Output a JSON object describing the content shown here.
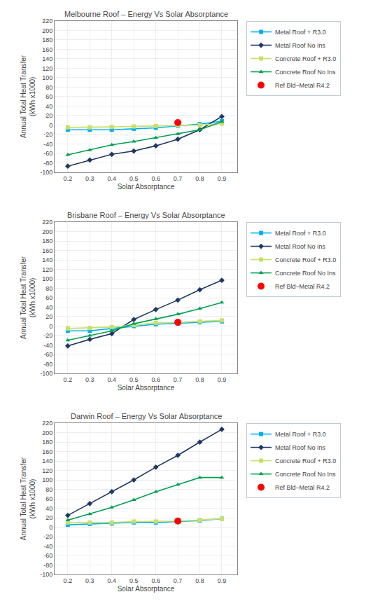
{
  "chart_data": [
    {
      "type": "line",
      "title": "Melbourne Roof – Energy Vs Solar Absorptance",
      "x": [
        0.2,
        0.3,
        0.4,
        0.5,
        0.6,
        0.7,
        0.8,
        0.9
      ],
      "series": [
        {
          "name": "Metal Roof + R3.0",
          "color": "#00b0f0",
          "marker": "square",
          "values": [
            -10,
            -10,
            -10,
            -8,
            -6,
            -2,
            2,
            8
          ]
        },
        {
          "name": "Metal Roof No Ins",
          "color": "#1f3864",
          "marker": "diamond",
          "values": [
            -87,
            -74,
            -62,
            -55,
            -44,
            -30,
            -10,
            18
          ]
        },
        {
          "name": "Concrete Roof + R3.0",
          "color": "#c8e06a",
          "marker": "square",
          "values": [
            -5,
            -5,
            -4,
            -3,
            -2,
            -1,
            0,
            3
          ]
        },
        {
          "name": "Concrete Roof No Ins",
          "color": "#00a050",
          "marker": "triangle-up",
          "values": [
            -63,
            -53,
            -42,
            -35,
            -27,
            -19,
            -10,
            7
          ]
        },
        {
          "name": "Ref Bld–Metal R4.2",
          "type": "scatter",
          "color": "#ff0000",
          "marker": "circle",
          "x": [
            0.7
          ],
          "values": [
            5
          ]
        }
      ],
      "xlabel": "Solar Absorptance",
      "ylabel": "Annual Total Heat Transfer\n(kWh x1000)",
      "xlim": [
        0.14,
        0.97
      ],
      "xticks": [
        0.2,
        0.3,
        0.4,
        0.5,
        0.6,
        0.7,
        0.8,
        0.9
      ],
      "ylim": [
        -100,
        220
      ],
      "yticks": [
        -100,
        -80,
        -60,
        -40,
        -20,
        0,
        20,
        40,
        60,
        80,
        100,
        120,
        140,
        160,
        180,
        200,
        220
      ],
      "grid": true,
      "legend": "right"
    },
    {
      "type": "line",
      "title": "Brisbane Roof – Energy Vs Solar Absorptance",
      "x": [
        0.2,
        0.3,
        0.4,
        0.5,
        0.6,
        0.7,
        0.8,
        0.9
      ],
      "series": [
        {
          "name": "Metal Roof + R3.0",
          "color": "#00b0f0",
          "marker": "square",
          "values": [
            -10,
            -10,
            -5,
            0,
            4,
            6,
            8,
            10
          ]
        },
        {
          "name": "Metal Roof No Ins",
          "color": "#1f3864",
          "marker": "diamond",
          "values": [
            -42,
            -28,
            -16,
            14,
            35,
            55,
            77,
            97
          ]
        },
        {
          "name": "Concrete Roof + R3.0",
          "color": "#c8e06a",
          "marker": "square",
          "values": [
            -5,
            -4,
            -2,
            2,
            7,
            8,
            10,
            12
          ]
        },
        {
          "name": "Concrete Roof No Ins",
          "color": "#00a050",
          "marker": "triangle-up",
          "values": [
            -30,
            -20,
            -10,
            5,
            15,
            25,
            37,
            50
          ]
        },
        {
          "name": "Ref Bld–Metal R4.2",
          "type": "scatter",
          "color": "#ff0000",
          "marker": "circle",
          "x": [
            0.7
          ],
          "values": [
            8
          ]
        }
      ],
      "xlabel": "Solar Absorptance",
      "ylabel": "Annual Total Heat Transfer\n(kWh x1000)",
      "xlim": [
        0.14,
        0.97
      ],
      "xticks": [
        0.2,
        0.3,
        0.4,
        0.5,
        0.6,
        0.7,
        0.8,
        0.9
      ],
      "ylim": [
        -100,
        220
      ],
      "yticks": [
        -100,
        -80,
        -60,
        -40,
        -20,
        0,
        20,
        40,
        60,
        80,
        100,
        120,
        140,
        160,
        180,
        200,
        220
      ],
      "grid": true,
      "legend": "right"
    },
    {
      "type": "line",
      "title": "Darwin Roof – Energy Vs Solar Absorptance",
      "x": [
        0.2,
        0.3,
        0.4,
        0.5,
        0.6,
        0.7,
        0.8,
        0.9
      ],
      "series": [
        {
          "name": "Metal Roof + R3.0",
          "color": "#00b0f0",
          "marker": "square",
          "values": [
            5,
            7,
            8,
            10,
            10,
            12,
            14,
            18
          ]
        },
        {
          "name": "Metal Roof No Ins",
          "color": "#1f3864",
          "marker": "diamond",
          "values": [
            25,
            50,
            75,
            100,
            127,
            152,
            180,
            207
          ]
        },
        {
          "name": "Concrete Roof + R3.0",
          "color": "#c8e06a",
          "marker": "square",
          "values": [
            10,
            10,
            10,
            12,
            12,
            13,
            15,
            18
          ]
        },
        {
          "name": "Concrete Roof No Ins",
          "color": "#00a050",
          "marker": "triangle-up",
          "values": [
            15,
            28,
            42,
            58,
            75,
            90,
            105,
            105
          ]
        },
        {
          "name": "Ref Bld–Metal R4.2",
          "type": "scatter",
          "color": "#ff0000",
          "marker": "circle",
          "x": [
            0.7
          ],
          "values": [
            13
          ]
        }
      ],
      "xlabel": "Solar Absorptance",
      "ylabel": "Annual Total Heat Transfer\n(kWh x1000)",
      "xlim": [
        0.14,
        0.97
      ],
      "xticks": [
        0.2,
        0.3,
        0.4,
        0.5,
        0.6,
        0.7,
        0.8,
        0.9
      ],
      "ylim": [
        -100,
        220
      ],
      "yticks": [
        -100,
        -80,
        -60,
        -40,
        -20,
        0,
        20,
        40,
        60,
        80,
        100,
        120,
        140,
        160,
        180,
        200,
        220
      ],
      "grid": true,
      "legend": "right"
    }
  ]
}
